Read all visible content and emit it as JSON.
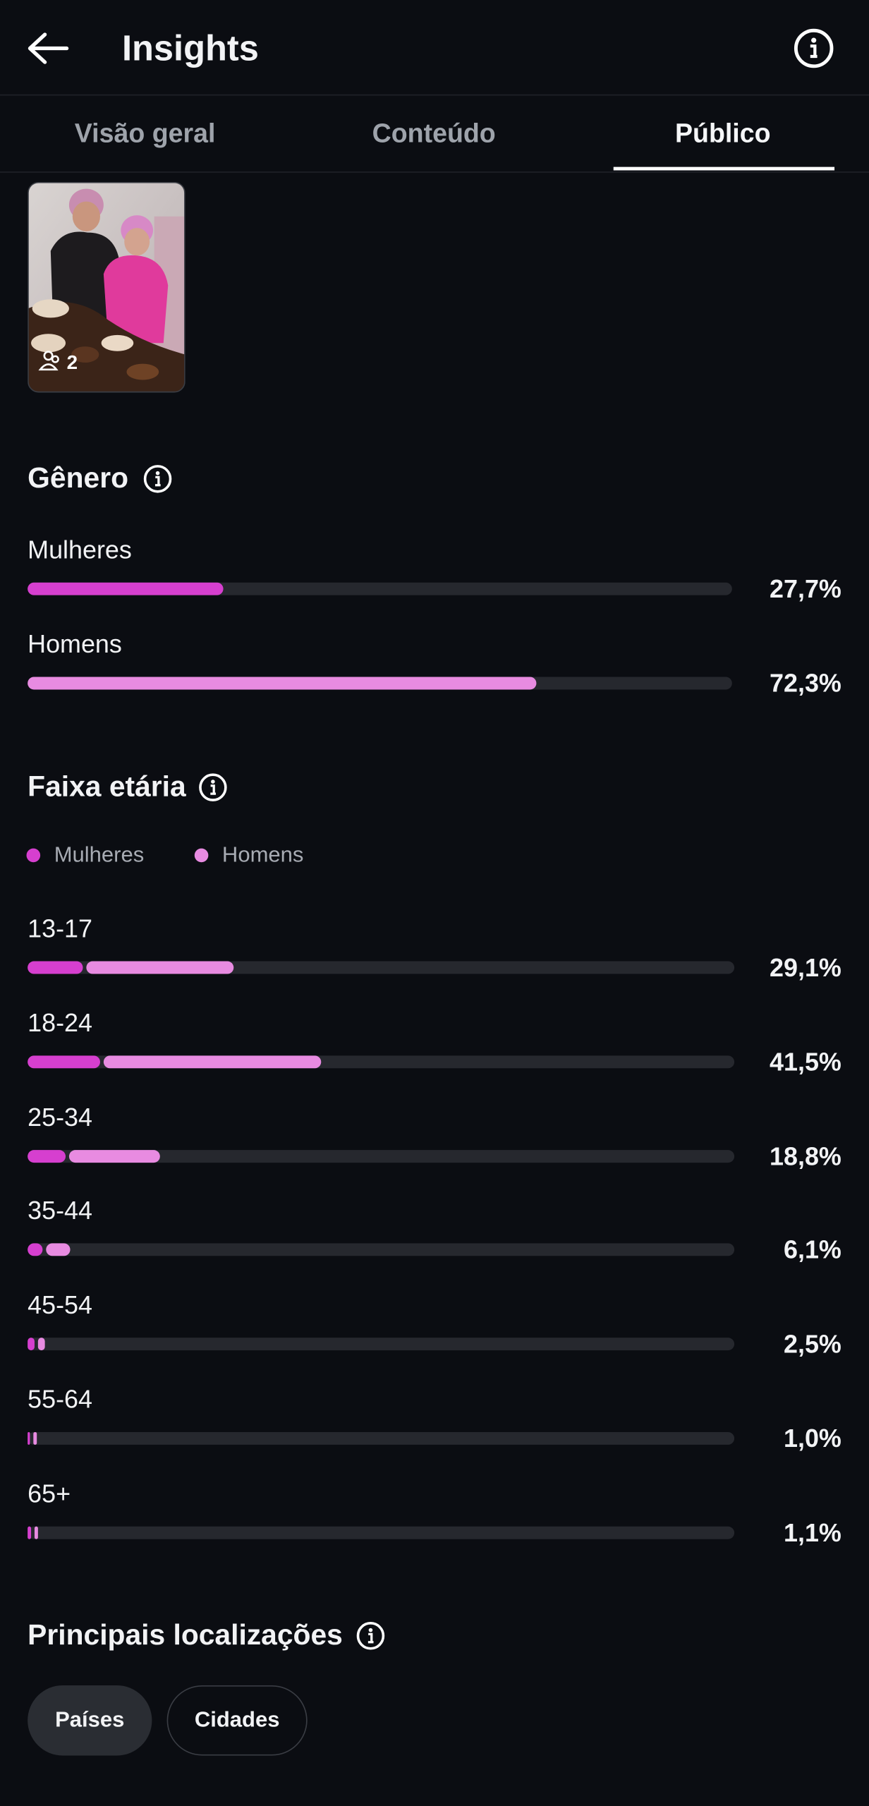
{
  "header": {
    "title": "Insights"
  },
  "tabs": {
    "items": [
      "Visão geral",
      "Conteúdo",
      "Público"
    ],
    "active": 2
  },
  "thumbnail": {
    "badge": "2"
  },
  "gender": {
    "title": "Gênero",
    "rows": [
      {
        "label": "Mulheres",
        "value": {
          "value": 27.7,
          "label": "27,7%"
        }
      },
      {
        "label": "Homens",
        "value": {
          "value": 72.3,
          "label": "72,3%"
        }
      }
    ]
  },
  "age": {
    "title": "Faixa etária",
    "legend": [
      "Mulheres",
      "Homens"
    ],
    "rows": [
      {
        "label": "13-17",
        "women": 7.8,
        "men": 21.3,
        "total": {
          "value": 29.1,
          "label": "29,1%"
        }
      },
      {
        "label": "18-24",
        "women": 10.3,
        "men": 31.2,
        "total": {
          "value": 41.5,
          "label": "41,5%"
        }
      },
      {
        "label": "25-34",
        "women": 5.4,
        "men": 13.4,
        "total": {
          "value": 18.8,
          "label": "18,8%"
        }
      },
      {
        "label": "35-44",
        "women": 2.1,
        "men": 4.0,
        "total": {
          "value": 6.1,
          "label": "6,1%"
        }
      },
      {
        "label": "45-54",
        "women": 1.0,
        "men": 1.5,
        "total": {
          "value": 2.5,
          "label": "2,5%"
        }
      },
      {
        "label": "55-64",
        "women": 0.4,
        "men": 0.6,
        "total": {
          "value": 1.0,
          "label": "1,0%"
        }
      },
      {
        "label": "65+",
        "women": 0.5,
        "men": 0.6,
        "total": {
          "value": 1.1,
          "label": "1,1%"
        }
      }
    ]
  },
  "locations": {
    "title": "Principais localizações",
    "chips": [
      "Países",
      "Cidades"
    ],
    "active": 0
  }
}
